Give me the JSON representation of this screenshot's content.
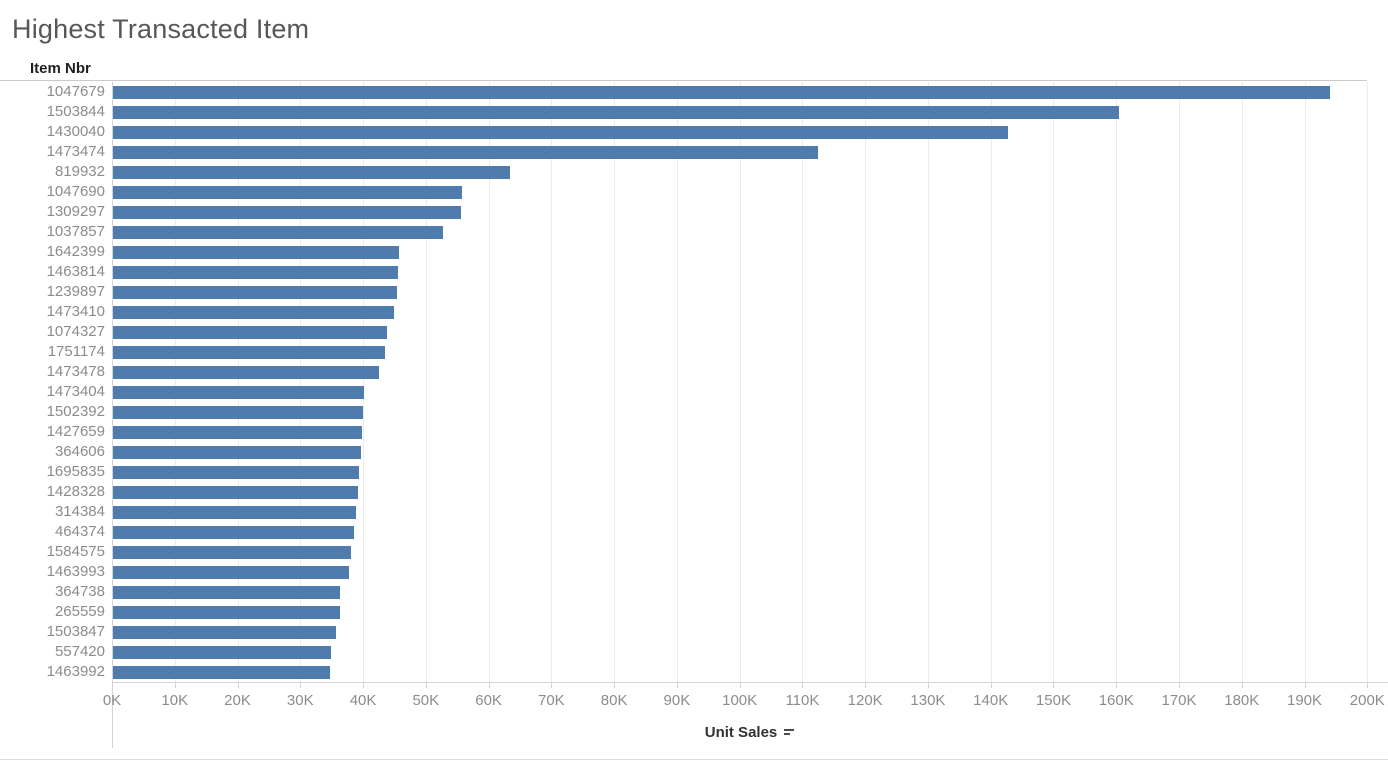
{
  "title": "Highest Transacted Item",
  "column_header": "Item Nbr",
  "x_axis_title": "Unit Sales",
  "colors": {
    "bar": "#4f7cac",
    "gridline": "#ececec",
    "axis_line": "#d4d4d4",
    "title_text": "#575757",
    "tick_text": "#8c8c8c",
    "header_text": "#1f1f1f"
  },
  "icons": {
    "sort_descending": "sort-descending-icon"
  },
  "chart_data": {
    "type": "bar",
    "orientation": "horizontal",
    "title": "Highest Transacted Item",
    "ylabel": "Item Nbr",
    "xlabel": "Unit Sales",
    "sort_order": "descending",
    "grid": true,
    "xlim": [
      0,
      203300
    ],
    "x_tick_interval": 10000,
    "x_tick_labels": [
      "0K",
      "10K",
      "20K",
      "30K",
      "40K",
      "50K",
      "60K",
      "70K",
      "80K",
      "90K",
      "100K",
      "110K",
      "120K",
      "130K",
      "140K",
      "150K",
      "160K",
      "170K",
      "180K",
      "190K",
      "200K"
    ],
    "categories": [
      "1047679",
      "1503844",
      "1430040",
      "1473474",
      "819932",
      "1047690",
      "1309297",
      "1037857",
      "1642399",
      "1463814",
      "1239897",
      "1473410",
      "1074327",
      "1751174",
      "1473478",
      "1473404",
      "1502392",
      "1427659",
      "364606",
      "1695835",
      "1428328",
      "314384",
      "464374",
      "1584575",
      "1463993",
      "364738",
      "265559",
      "1503847",
      "557420",
      "1463992"
    ],
    "values": [
      194000,
      160500,
      142800,
      112500,
      63400,
      55800,
      55600,
      52700,
      45700,
      45600,
      45400,
      44900,
      43800,
      43500,
      42600,
      40200,
      40000,
      39800,
      39700,
      39300,
      39200,
      38900,
      38600,
      38000,
      37800,
      36400,
      36300,
      35700,
      34900,
      34800
    ]
  }
}
